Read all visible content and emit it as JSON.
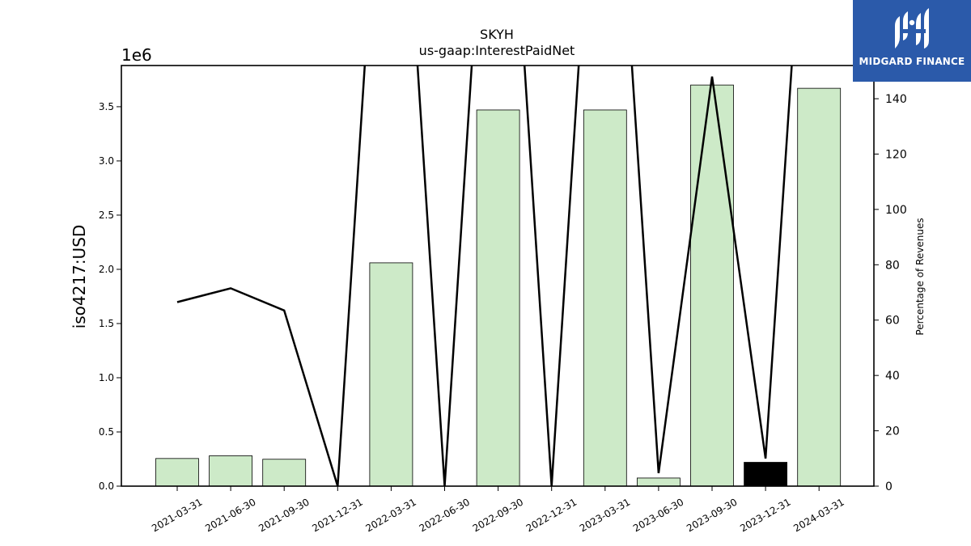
{
  "chart_data": {
    "type": "bar",
    "title": "SKYH",
    "subtitle": "us-gaap:InterestPaidNet",
    "ylabel": "iso4217:USD",
    "y_exponent_label": "1e6",
    "y2label": "Percentage of Revenues",
    "categories": [
      "2021-03-31",
      "2021-06-30",
      "2021-09-30",
      "2021-12-31",
      "2022-03-31",
      "2022-06-30",
      "2022-09-30",
      "2022-12-31",
      "2023-03-31",
      "2023-06-30",
      "2023-09-30",
      "2023-12-31",
      "2024-03-31"
    ],
    "series": [
      {
        "type": "bar",
        "axis": "left",
        "values": [
          255000,
          280000,
          248000,
          0,
          2060000,
          0,
          3470000,
          0,
          3470000,
          75000,
          3700000,
          220000,
          3670000
        ],
        "colors": [
          "#cdeac8",
          "#cdeac8",
          "#cdeac8",
          "#cdeac8",
          "#cdeac8",
          "#cdeac8",
          "#cdeac8",
          "#cdeac8",
          "#cdeac8",
          "#cdeac8",
          "#cdeac8",
          "#000000",
          "#cdeac8"
        ]
      },
      {
        "type": "line",
        "axis": "right",
        "color": "#000000",
        "values": [
          66.5,
          71.5,
          63.5,
          0,
          300,
          0,
          300,
          0,
          300,
          4.7,
          148,
          10,
          300
        ]
      }
    ],
    "ylim": [
      0,
      3880000
    ],
    "y2lim": [
      0,
      152
    ],
    "yticks": [
      0,
      500000,
      1000000,
      1500000,
      2000000,
      2500000,
      3000000,
      3500000
    ],
    "ytick_labels": [
      "0.0",
      "0.5",
      "1.0",
      "1.5",
      "2.0",
      "2.5",
      "3.0",
      "3.5"
    ],
    "y2ticks": [
      0,
      20,
      40,
      60,
      80,
      100,
      120,
      140
    ],
    "y2tick_labels": [
      "0",
      "20",
      "40",
      "60",
      "80",
      "100",
      "120",
      "140"
    ],
    "grid": false,
    "legend": "none"
  },
  "logo": {
    "text": "MIDGARD FINANCE",
    "background": "#2b5aaa"
  }
}
